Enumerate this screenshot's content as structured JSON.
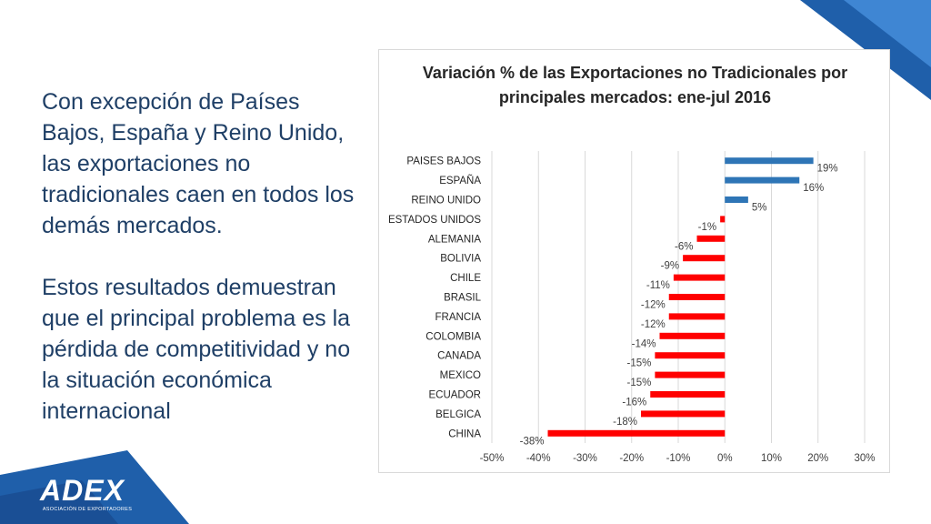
{
  "slide": {
    "paragraph1": "Con excepción de Países Bajos, España y Reino Unido, las exportaciones no tradicionales caen en todos los demás mercados.",
    "paragraph2": "Estos resultados demuestran que el principal problema es la pérdida de competitividad y no la situación económica internacional"
  },
  "logo": {
    "name": "ADEX",
    "subtitle": "ASOCIACIÓN DE EXPORTADORES"
  },
  "colors": {
    "positive_bar": "#2e75b6",
    "negative_bar": "#ff0000",
    "text_blue": "#1f3f66",
    "corner_blue": "#1f5faa"
  },
  "chart_data": {
    "type": "bar",
    "orientation": "horizontal",
    "title": "Variación %  de las Exportaciones no Tradicionales por principales mercados: ene-jul 2016",
    "categories": [
      "PAISES BAJOS",
      "ESPAÑA",
      "REINO UNIDO",
      "ESTADOS UNIDOS",
      "ALEMANIA",
      "BOLIVIA",
      "CHILE",
      "BRASIL",
      "FRANCIA",
      "COLOMBIA",
      "CANADA",
      "MEXICO",
      "ECUADOR",
      "BELGICA",
      "CHINA"
    ],
    "values": [
      19,
      16,
      5,
      -1,
      -6,
      -9,
      -11,
      -12,
      -12,
      -14,
      -15,
      -15,
      -16,
      -18,
      -38
    ],
    "data_labels": [
      "19%",
      "16%",
      "5%",
      "-1%",
      "-6%",
      "-9%",
      "-11%",
      "-12%",
      "-12%",
      "-14%",
      "-15%",
      "-15%",
      "-16%",
      "-18%",
      "-38%"
    ],
    "xlim": [
      -50,
      30
    ],
    "x_ticks": [
      -50,
      -40,
      -30,
      -20,
      -10,
      0,
      10,
      20,
      30
    ],
    "x_tick_labels": [
      "-50%",
      "-40%",
      "-30%",
      "-20%",
      "-10%",
      "0%",
      "10%",
      "20%",
      "30%"
    ],
    "xlabel": "",
    "ylabel": "",
    "grid": true,
    "legend": false
  }
}
